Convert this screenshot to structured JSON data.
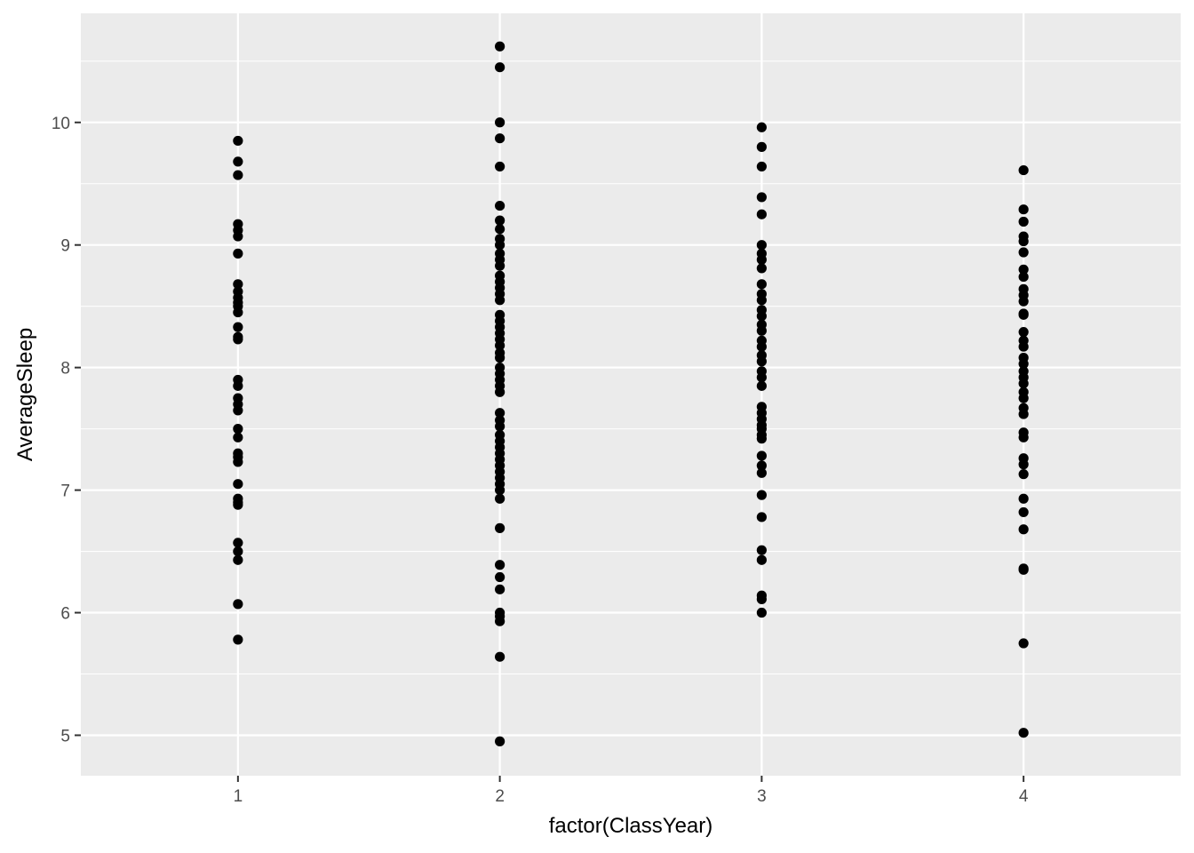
{
  "chart_data": {
    "type": "scatter",
    "title": "",
    "xlabel": "factor(ClassYear)",
    "ylabel": "AverageSleep",
    "categories": [
      "1",
      "2",
      "3",
      "4"
    ],
    "ylim": [
      4.67,
      10.89
    ],
    "y_ticks": [
      5,
      6,
      7,
      8,
      9,
      10
    ],
    "y_tick_labels": [
      "5",
      "6",
      "7",
      "8",
      "9",
      "10"
    ],
    "grid": true,
    "legend": "none",
    "colors": {
      "panel": "#ebebeb",
      "grid": "#ffffff",
      "point": "#000000"
    },
    "series": [
      {
        "category": "1",
        "values": [
          9.85,
          9.68,
          9.57,
          9.17,
          9.12,
          9.07,
          8.93,
          8.68,
          8.62,
          8.57,
          8.53,
          8.5,
          8.45,
          8.33,
          8.25,
          8.23,
          7.9,
          7.85,
          7.75,
          7.7,
          7.65,
          7.5,
          7.43,
          7.3,
          7.27,
          7.23,
          7.05,
          6.93,
          6.9,
          6.88,
          6.57,
          6.5,
          6.43,
          6.07,
          5.78
        ]
      },
      {
        "category": "2",
        "values": [
          10.62,
          10.45,
          10.0,
          9.87,
          9.64,
          9.32,
          9.2,
          9.13,
          9.05,
          9.0,
          8.93,
          8.88,
          8.83,
          8.75,
          8.7,
          8.65,
          8.6,
          8.55,
          8.43,
          8.38,
          8.33,
          8.28,
          8.23,
          8.18,
          8.12,
          8.08,
          8.0,
          7.95,
          7.9,
          7.85,
          7.8,
          7.63,
          7.57,
          7.52,
          7.45,
          7.4,
          7.35,
          7.3,
          7.25,
          7.2,
          7.15,
          7.1,
          7.05,
          7.0,
          6.93,
          6.69,
          6.39,
          6.29,
          6.19,
          6.0,
          5.97,
          5.93,
          5.64,
          4.95
        ]
      },
      {
        "category": "3",
        "values": [
          9.96,
          9.8,
          9.64,
          9.39,
          9.25,
          9.0,
          8.93,
          8.88,
          8.81,
          8.68,
          8.6,
          8.55,
          8.47,
          8.42,
          8.35,
          8.3,
          8.22,
          8.17,
          8.1,
          8.05,
          7.97,
          7.92,
          7.85,
          7.68,
          7.63,
          7.58,
          7.53,
          7.5,
          7.45,
          7.42,
          7.28,
          7.2,
          7.14,
          6.96,
          6.78,
          6.51,
          6.43,
          6.14,
          6.11,
          6.0
        ]
      },
      {
        "category": "4",
        "values": [
          9.61,
          9.29,
          9.19,
          9.07,
          9.03,
          8.94,
          8.8,
          8.74,
          8.64,
          8.59,
          8.54,
          8.44,
          8.43,
          8.29,
          8.22,
          8.17,
          8.08,
          8.03,
          7.97,
          7.92,
          7.87,
          7.8,
          7.75,
          7.67,
          7.62,
          7.47,
          7.43,
          7.26,
          7.21,
          7.13,
          6.93,
          6.82,
          6.68,
          6.36,
          6.35,
          5.75,
          5.02
        ]
      }
    ]
  }
}
